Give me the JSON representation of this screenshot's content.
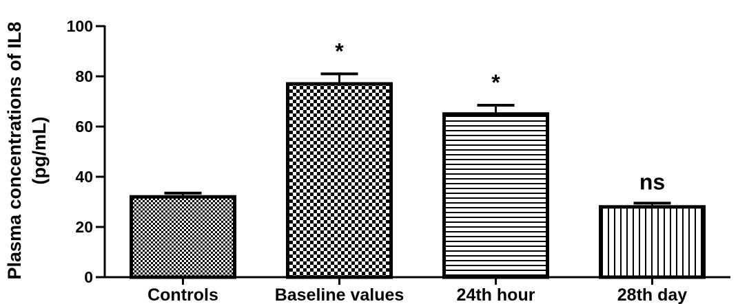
{
  "chart_data": {
    "type": "bar",
    "categories": [
      "Controls",
      "Baseline values",
      "24th hour",
      "28th day"
    ],
    "values": [
      32,
      77,
      65,
      28
    ],
    "error_upper": [
      33.5,
      81,
      68.5,
      29.5
    ],
    "annotations": [
      "",
      "*",
      "*",
      "ns"
    ],
    "ylabel_line1": "Plasma concentrations of IL8",
    "ylabel_line2": "(pg/mL)",
    "ylim": [
      0,
      100
    ],
    "yticks": [
      0,
      20,
      40,
      60,
      80,
      100
    ],
    "ytick_labels": [
      "0",
      "20",
      "40",
      "60",
      "80",
      "100"
    ],
    "fill_patterns": [
      "fine-checker",
      "coarse-checker",
      "horizontal-lines",
      "vertical-lines"
    ],
    "grid": false,
    "legend": "none",
    "colors": {
      "bar_stroke": "#000000",
      "bar_pattern": "#000000",
      "background": "#ffffff"
    }
  }
}
